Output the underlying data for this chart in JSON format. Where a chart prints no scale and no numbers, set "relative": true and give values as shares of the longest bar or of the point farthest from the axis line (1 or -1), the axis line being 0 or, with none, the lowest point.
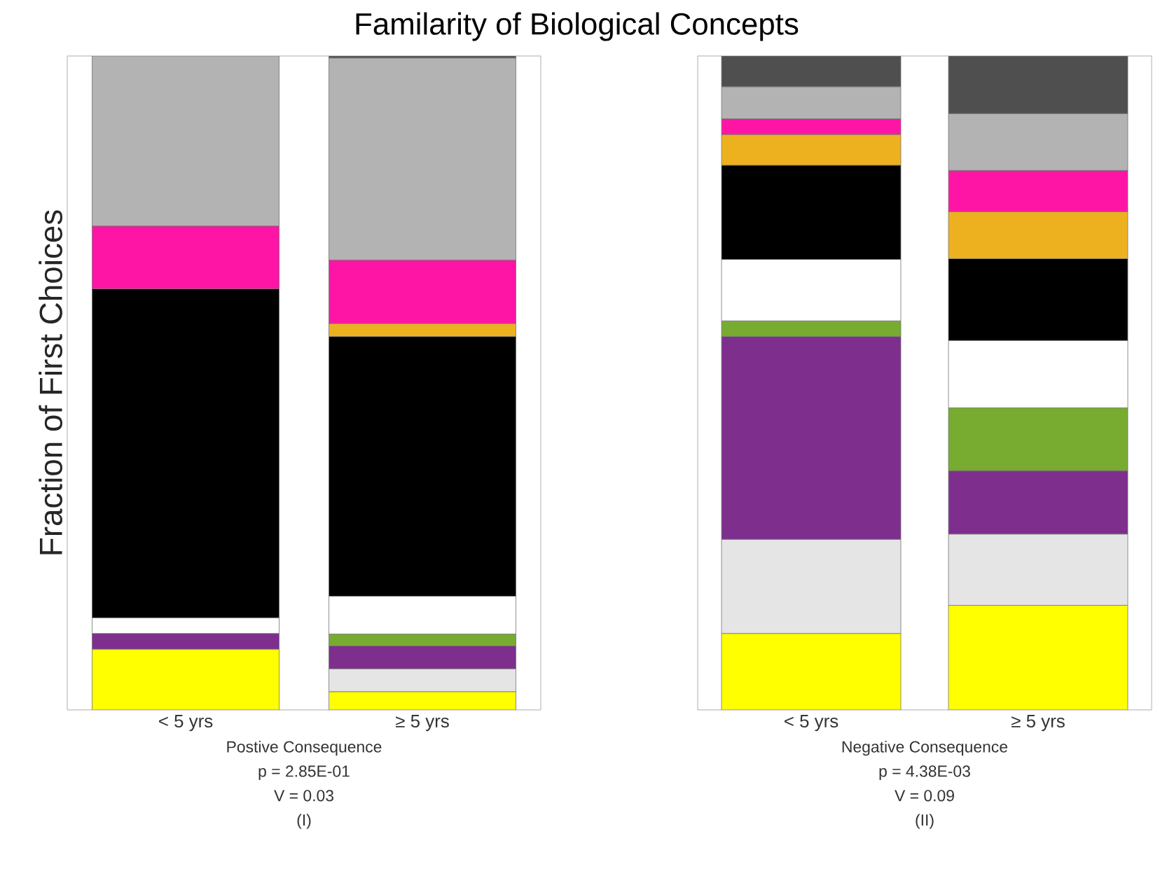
{
  "chart_data": [
    {
      "type": "bar",
      "stacked": true,
      "relative": true,
      "title": "Familarity of Biological Concepts",
      "ylabel": "Fraction of First Choices",
      "xlabel": "Postive Consequence",
      "annotations": [
        "p = 2.85E-01",
        "V = 0.03",
        "(I)"
      ],
      "categories": [
        "< 5 yrs",
        "≥ 5 yrs"
      ],
      "series": [
        {
          "color": "#ffff00",
          "values": [
            0.093,
            0.028
          ]
        },
        {
          "color": "#e5e5e5",
          "values": [
            0,
            0.035
          ]
        },
        {
          "color": "#7e2f8e",
          "values": [
            0.024,
            0.035
          ]
        },
        {
          "color": "#77ac30",
          "values": [
            0,
            0.018
          ]
        },
        {
          "color": "#ffffff",
          "values": [
            0.024,
            0.058
          ]
        },
        {
          "color": "#000000",
          "values": [
            0.503,
            0.397
          ]
        },
        {
          "color": "#edb120",
          "values": [
            0,
            0.02
          ]
        },
        {
          "color": "#ff15a5",
          "values": [
            0.096,
            0.097
          ]
        },
        {
          "color": "#b3b3b3",
          "values": [
            0.26,
            0.309
          ]
        },
        {
          "color": "#4f4f4f",
          "values": [
            0,
            0.003
          ]
        }
      ]
    },
    {
      "type": "bar",
      "stacked": true,
      "relative": true,
      "xlabel": "Negative Consequence",
      "annotations": [
        "p = 4.38E-03",
        "V = 0.09",
        "(II)"
      ],
      "categories": [
        "< 5 yrs",
        "≥ 5 yrs"
      ],
      "series": [
        {
          "color": "#ffff00",
          "values": [
            0.117,
            0.16
          ]
        },
        {
          "color": "#e5e5e5",
          "values": [
            0.144,
            0.109
          ]
        },
        {
          "color": "#7e2f8e",
          "values": [
            0.31,
            0.097
          ]
        },
        {
          "color": "#77ac30",
          "values": [
            0.024,
            0.096
          ]
        },
        {
          "color": "#ffffff",
          "values": [
            0.094,
            0.103
          ]
        },
        {
          "color": "#000000",
          "values": [
            0.144,
            0.125
          ]
        },
        {
          "color": "#edb120",
          "values": [
            0.047,
            0.072
          ]
        },
        {
          "color": "#ff15a5",
          "values": [
            0.024,
            0.063
          ]
        },
        {
          "color": "#b3b3b3",
          "values": [
            0.049,
            0.087
          ]
        },
        {
          "color": "#4f4f4f",
          "values": [
            0.047,
            0.088
          ]
        }
      ]
    }
  ]
}
